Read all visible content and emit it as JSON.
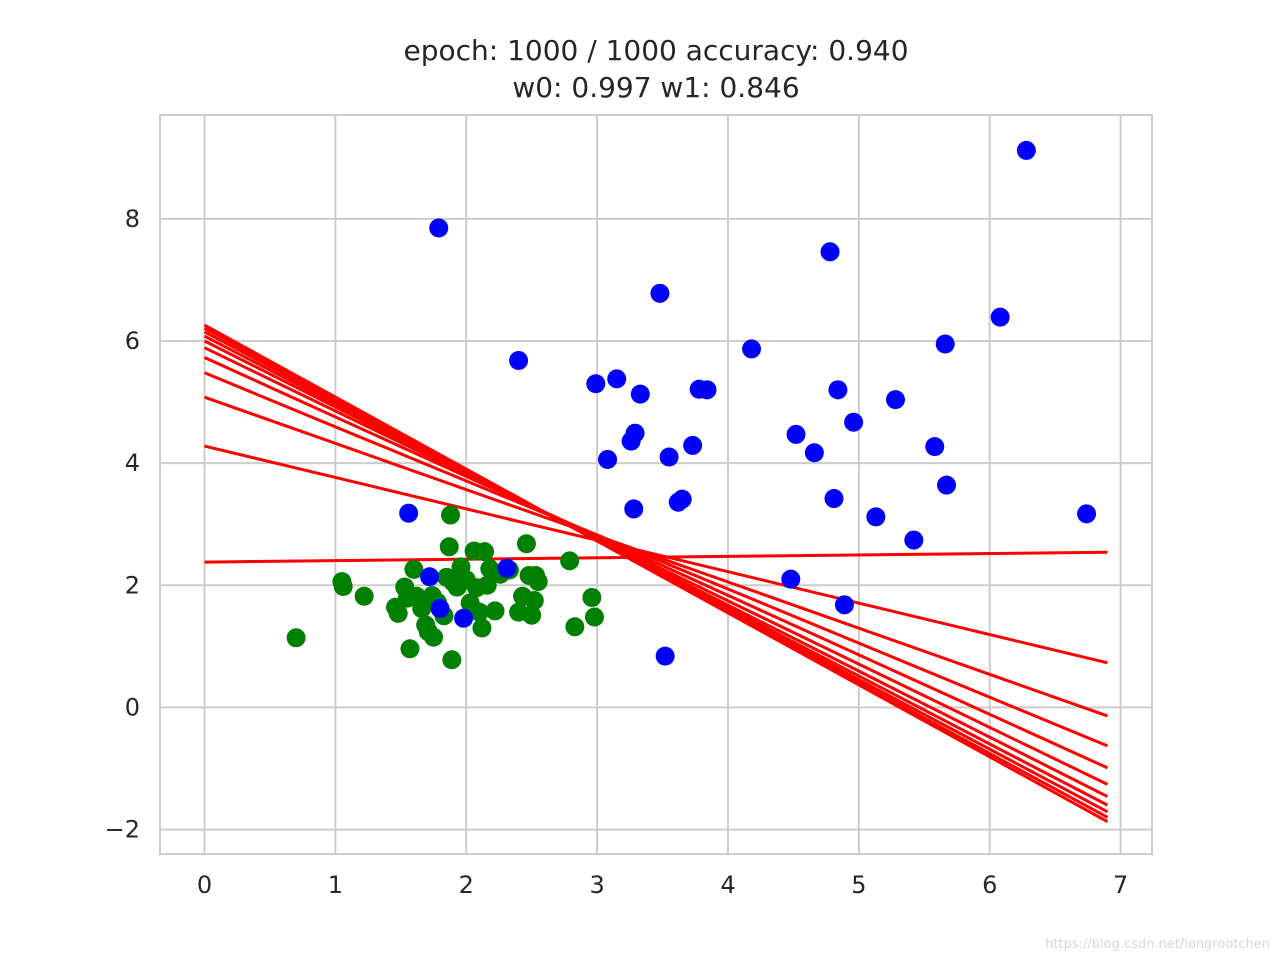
{
  "title_line1": "epoch: 1000 / 1000 accuracy: 0.940",
  "title_line2": "w0: 0.997 w1: 0.846",
  "watermark": "https://blog.csdn.net/longrootchen",
  "chart_data": {
    "type": "scatter",
    "title": "epoch: 1000 / 1000 accuracy: 0.940\nw0: 0.997 w1: 0.846",
    "xlabel": "",
    "ylabel": "",
    "xlim": [
      -0.34,
      7.24
    ],
    "ylim": [
      -2.4,
      9.7
    ],
    "grid": true,
    "xticks": [
      0,
      1,
      2,
      3,
      4,
      5,
      6,
      7
    ],
    "xtick_labels": [
      "0",
      "1",
      "2",
      "3",
      "4",
      "5",
      "6",
      "7"
    ],
    "yticks": [
      -2,
      0,
      2,
      4,
      6,
      8
    ],
    "ytick_labels": [
      "−2",
      "0",
      "2",
      "4",
      "6",
      "8"
    ],
    "colors": {
      "class_a": "#008000",
      "class_b": "#0000ff",
      "boundary": "#ff0000",
      "grid": "#cccccc",
      "frame": "#cccccc",
      "text": "#262626"
    },
    "series": [
      {
        "color": "#008000",
        "points": [
          [
            0.7,
            1.14
          ],
          [
            1.05,
            2.06
          ],
          [
            1.06,
            1.98
          ],
          [
            1.22,
            1.82
          ],
          [
            1.46,
            1.64
          ],
          [
            1.48,
            1.54
          ],
          [
            1.53,
            1.97
          ],
          [
            1.55,
            1.79
          ],
          [
            1.57,
            0.96
          ],
          [
            1.6,
            2.26
          ],
          [
            1.62,
            1.82
          ],
          [
            1.66,
            1.62
          ],
          [
            1.69,
            1.35
          ],
          [
            1.71,
            1.24
          ],
          [
            1.74,
            1.83
          ],
          [
            1.75,
            1.15
          ],
          [
            1.78,
            1.72
          ],
          [
            1.83,
            1.5
          ],
          [
            1.85,
            2.13
          ],
          [
            1.87,
            2.63
          ],
          [
            1.88,
            3.15
          ],
          [
            1.89,
            0.78
          ],
          [
            1.9,
            2.05
          ],
          [
            1.93,
            1.97
          ],
          [
            1.96,
            2.3
          ],
          [
            2.0,
            2.09
          ],
          [
            2.03,
            1.71
          ],
          [
            2.06,
            2.56
          ],
          [
            2.08,
            1.96
          ],
          [
            2.1,
            1.56
          ],
          [
            2.12,
            1.3
          ],
          [
            2.14,
            2.55
          ],
          [
            2.16,
            2.0
          ],
          [
            2.18,
            2.27
          ],
          [
            2.22,
            1.58
          ],
          [
            2.26,
            2.18
          ],
          [
            2.33,
            2.25
          ],
          [
            2.4,
            1.56
          ],
          [
            2.43,
            1.82
          ],
          [
            2.46,
            2.68
          ],
          [
            2.48,
            2.16
          ],
          [
            2.5,
            1.51
          ],
          [
            2.52,
            1.75
          ],
          [
            2.53,
            2.16
          ],
          [
            2.55,
            2.06
          ],
          [
            2.79,
            2.4
          ],
          [
            2.83,
            1.32
          ],
          [
            2.96,
            1.8
          ],
          [
            2.98,
            1.48
          ]
        ]
      },
      {
        "color": "#0000ff",
        "points": [
          [
            1.56,
            3.18
          ],
          [
            1.72,
            2.14
          ],
          [
            1.79,
            7.85
          ],
          [
            1.8,
            1.62
          ],
          [
            1.98,
            1.46
          ],
          [
            2.31,
            2.28
          ],
          [
            2.4,
            5.68
          ],
          [
            2.99,
            5.3
          ],
          [
            3.08,
            4.06
          ],
          [
            3.15,
            5.38
          ],
          [
            3.26,
            4.36
          ],
          [
            3.28,
            3.25
          ],
          [
            3.29,
            4.49
          ],
          [
            3.33,
            5.13
          ],
          [
            3.48,
            6.78
          ],
          [
            3.52,
            0.84
          ],
          [
            3.55,
            4.1
          ],
          [
            3.62,
            3.36
          ],
          [
            3.65,
            3.41
          ],
          [
            3.73,
            4.29
          ],
          [
            3.78,
            5.21
          ],
          [
            3.84,
            5.2
          ],
          [
            4.18,
            5.87
          ],
          [
            4.48,
            2.1
          ],
          [
            4.52,
            4.47
          ],
          [
            4.66,
            4.17
          ],
          [
            4.78,
            7.46
          ],
          [
            4.81,
            3.42
          ],
          [
            4.84,
            5.2
          ],
          [
            4.89,
            1.68
          ],
          [
            4.96,
            4.67
          ],
          [
            5.13,
            3.12
          ],
          [
            5.28,
            5.04
          ],
          [
            5.42,
            2.74
          ],
          [
            5.58,
            4.27
          ],
          [
            5.66,
            5.95
          ],
          [
            5.67,
            3.64
          ],
          [
            6.08,
            6.39
          ],
          [
            6.28,
            9.12
          ],
          [
            6.74,
            3.17
          ]
        ]
      }
    ],
    "boundary_lines": {
      "color": "#ff0000",
      "x_range": [
        0,
        6.9
      ],
      "lines": [
        {
          "y_at_x0": 2.38,
          "y_at_x_end": 2.54
        },
        {
          "y_at_x0": 4.28,
          "y_at_x_end": 0.73
        },
        {
          "y_at_x0": 5.08,
          "y_at_x_end": -0.14
        },
        {
          "y_at_x0": 5.48,
          "y_at_x_end": -0.63
        },
        {
          "y_at_x0": 5.73,
          "y_at_x_end": -0.99
        },
        {
          "y_at_x0": 5.89,
          "y_at_x_end": -1.26
        },
        {
          "y_at_x0": 6.0,
          "y_at_x_end": -1.46
        },
        {
          "y_at_x0": 6.08,
          "y_at_x_end": -1.6
        },
        {
          "y_at_x0": 6.15,
          "y_at_x_end": -1.71
        },
        {
          "y_at_x0": 6.21,
          "y_at_x_end": -1.8
        },
        {
          "y_at_x0": 6.26,
          "y_at_x_end": -1.87
        }
      ]
    }
  }
}
